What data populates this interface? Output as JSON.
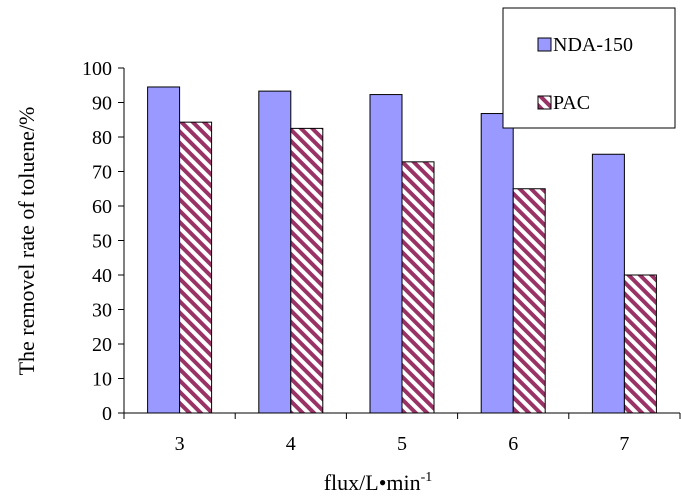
{
  "chart_data": {
    "type": "bar",
    "categories": [
      "3",
      "4",
      "5",
      "6",
      "7"
    ],
    "series": [
      {
        "name": "NDA-150",
        "values": [
          94.5,
          93.3,
          92.3,
          86.8,
          75.0
        ],
        "color": "#9999ff",
        "pattern": "solid"
      },
      {
        "name": "PAC",
        "values": [
          84.3,
          82.5,
          72.8,
          65.0,
          40.0
        ],
        "color": "#993366",
        "pattern": "diagonal-stripes"
      }
    ],
    "xlabel": "flux/L•min",
    "xlabel_superscript": "-1",
    "ylabel": "The removel rate of toluene/%",
    "ylim": [
      0,
      100
    ],
    "yticks": [
      "0",
      "10",
      "20",
      "30",
      "40",
      "50",
      "60",
      "70",
      "80",
      "90",
      "100"
    ],
    "grid": false,
    "legend_position": "top-right"
  }
}
